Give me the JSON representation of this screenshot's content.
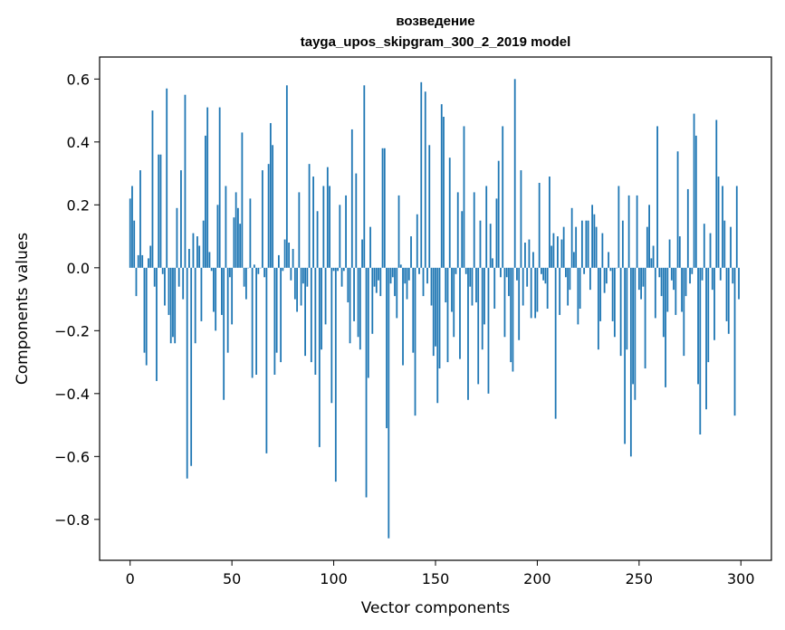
{
  "chart_data": {
    "type": "bar",
    "title_line1": "возведение",
    "title_line2": "tayga_upos_skipgram_300_2_2019 model",
    "xlabel": "Vector components",
    "ylabel": "Components values",
    "xlim": [
      -15,
      315
    ],
    "ylim": [
      -0.93,
      0.67
    ],
    "xticks": [
      0,
      50,
      100,
      150,
      200,
      250,
      300
    ],
    "xtick_labels": [
      "0",
      "50",
      "100",
      "150",
      "200",
      "250",
      "300"
    ],
    "yticks": [
      -0.8,
      -0.6,
      -0.4,
      -0.2,
      0.0,
      0.2,
      0.4,
      0.6
    ],
    "ytick_labels": [
      "−0.8",
      "−0.6",
      "−0.4",
      "−0.2",
      "0.0",
      "0.2",
      "0.4",
      "0.6"
    ],
    "bar_color": "#1f77b4",
    "grid": false,
    "values": [
      0.22,
      0.26,
      0.15,
      -0.09,
      0.04,
      0.31,
      0.04,
      -0.27,
      -0.31,
      0.03,
      0.07,
      0.5,
      -0.06,
      -0.36,
      0.36,
      0.36,
      -0.02,
      -0.12,
      0.57,
      -0.15,
      -0.24,
      -0.22,
      -0.24,
      0.19,
      -0.06,
      0.31,
      -0.1,
      0.55,
      -0.67,
      0.06,
      -0.63,
      0.11,
      -0.24,
      0.1,
      0.07,
      -0.17,
      0.15,
      0.42,
      0.51,
      0.05,
      -0.01,
      -0.14,
      -0.2,
      0.2,
      0.51,
      -0.15,
      -0.42,
      0.26,
      -0.27,
      -0.03,
      -0.18,
      0.16,
      0.24,
      0.19,
      0.14,
      0.43,
      -0.06,
      -0.1,
      0.0,
      0.22,
      -0.35,
      0.01,
      -0.34,
      -0.02,
      0.0,
      0.31,
      -0.03,
      -0.59,
      0.33,
      0.46,
      0.39,
      -0.34,
      -0.27,
      0.04,
      -0.3,
      -0.01,
      0.09,
      0.58,
      0.08,
      -0.04,
      0.06,
      -0.1,
      -0.14,
      0.24,
      -0.12,
      -0.05,
      -0.28,
      -0.06,
      0.33,
      -0.3,
      0.29,
      -0.34,
      0.18,
      -0.57,
      -0.26,
      0.26,
      -0.18,
      0.32,
      0.26,
      -0.43,
      -0.01,
      -0.68,
      -0.01,
      0.2,
      -0.06,
      -0.01,
      0.23,
      -0.11,
      -0.24,
      0.44,
      -0.17,
      0.3,
      -0.22,
      -0.26,
      0.09,
      0.58,
      -0.73,
      -0.35,
      0.13,
      -0.21,
      -0.06,
      -0.08,
      -0.04,
      -0.09,
      0.38,
      0.38,
      -0.51,
      -0.86,
      -0.05,
      -0.03,
      -0.09,
      -0.16,
      0.23,
      0.01,
      -0.31,
      -0.05,
      -0.1,
      -0.04,
      0.1,
      -0.27,
      -0.47,
      0.17,
      -0.02,
      0.59,
      -0.09,
      0.56,
      -0.05,
      0.39,
      -0.12,
      -0.28,
      -0.25,
      -0.43,
      -0.32,
      0.52,
      0.48,
      -0.11,
      -0.3,
      0.35,
      -0.14,
      -0.22,
      -0.02,
      0.24,
      -0.29,
      0.18,
      0.45,
      -0.02,
      -0.42,
      -0.06,
      -0.12,
      0.24,
      -0.11,
      -0.37,
      0.15,
      -0.26,
      -0.18,
      0.26,
      -0.4,
      0.14,
      0.03,
      -0.13,
      0.22,
      0.34,
      -0.03,
      0.45,
      -0.22,
      -0.03,
      -0.09,
      -0.3,
      -0.33,
      0.6,
      -0.04,
      -0.23,
      0.31,
      -0.12,
      0.08,
      -0.06,
      0.09,
      -0.16,
      0.05,
      -0.16,
      -0.14,
      0.27,
      -0.02,
      -0.04,
      -0.05,
      -0.13,
      0.29,
      0.07,
      0.11,
      -0.48,
      0.1,
      -0.15,
      0.09,
      0.13,
      -0.03,
      -0.12,
      -0.07,
      0.19,
      0.05,
      0.13,
      -0.18,
      -0.13,
      0.15,
      -0.02,
      0.15,
      0.15,
      -0.07,
      0.2,
      0.17,
      0.13,
      -0.26,
      -0.17,
      0.11,
      -0.08,
      -0.05,
      0.05,
      -0.01,
      -0.17,
      -0.22,
      0.0,
      0.26,
      -0.28,
      0.15,
      -0.56,
      -0.26,
      0.23,
      -0.6,
      -0.37,
      -0.42,
      0.23,
      -0.07,
      -0.1,
      -0.06,
      -0.32,
      0.13,
      0.2,
      0.03,
      0.07,
      -0.16,
      0.45,
      -0.03,
      -0.09,
      -0.22,
      -0.38,
      -0.14,
      0.09,
      -0.04,
      -0.07,
      -0.15,
      0.37,
      0.1,
      -0.14,
      -0.28,
      -0.09,
      0.25,
      -0.05,
      -0.02,
      0.49,
      0.42,
      -0.37,
      -0.53,
      -0.04,
      0.14,
      -0.45,
      -0.3,
      0.11,
      -0.07,
      -0.23,
      0.47,
      0.29,
      -0.04,
      0.26,
      0.15,
      -0.17,
      -0.21,
      0.13,
      -0.05,
      -0.47,
      0.26,
      -0.1
    ]
  }
}
